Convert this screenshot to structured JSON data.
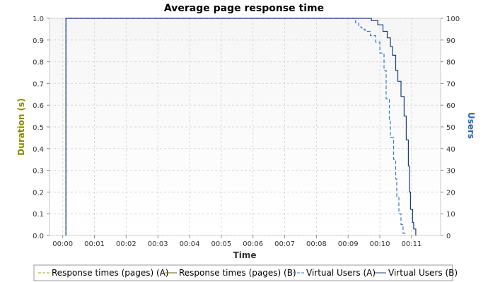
{
  "chart_data": {
    "type": "line",
    "title": "Average page response time",
    "xlabel": "Time",
    "ylabel_left": "Duration (s)",
    "ylabel_right": "Users",
    "x_unit": "seconds",
    "x_range": [
      -25,
      715
    ],
    "x_ticks": [
      {
        "value": 0,
        "label": "00:00"
      },
      {
        "value": 60,
        "label": "00:01"
      },
      {
        "value": 120,
        "label": "00:02"
      },
      {
        "value": 180,
        "label": "00:03"
      },
      {
        "value": 240,
        "label": "00:04"
      },
      {
        "value": 300,
        "label": "00:05"
      },
      {
        "value": 360,
        "label": "00:06"
      },
      {
        "value": 420,
        "label": "00:07"
      },
      {
        "value": 480,
        "label": "00:08"
      },
      {
        "value": 540,
        "label": "00:09"
      },
      {
        "value": 600,
        "label": "00:10"
      },
      {
        "value": 660,
        "label": "00:11"
      }
    ],
    "y_left_range": [
      0,
      1.0
    ],
    "y_left_ticks": [
      "0.0",
      "0.1",
      "0.2",
      "0.3",
      "0.4",
      "0.5",
      "0.6",
      "0.7",
      "0.8",
      "0.9",
      "1.0"
    ],
    "y_right_range": [
      0,
      100
    ],
    "y_right_ticks": [
      "0",
      "10",
      "20",
      "30",
      "40",
      "50",
      "60",
      "70",
      "80",
      "90",
      "100"
    ],
    "grid": true,
    "legend_position": "bottom",
    "series": [
      {
        "name": "Response times (pages) (A)",
        "axis": "left",
        "color": "#a0a020",
        "dash": "dashed",
        "x": [],
        "y": []
      },
      {
        "name": "Response times (pages) (B)",
        "axis": "left",
        "color": "#606000",
        "dash": "solid",
        "x": [],
        "y": []
      },
      {
        "name": "Virtual Users (A)",
        "axis": "right",
        "color": "#3a78c0",
        "dash": "dashed",
        "x": [
          6,
          6,
          550,
          554,
          560,
          566,
          572,
          582,
          592,
          600,
          608,
          612,
          618,
          620,
          626,
          630,
          632,
          636,
          640,
          644,
          648
        ],
        "y": [
          0,
          100,
          100,
          98,
          96,
          95,
          94,
          92,
          89,
          84,
          76,
          63,
          53,
          45,
          35,
          26,
          18,
          10,
          5,
          1,
          0
        ]
      },
      {
        "name": "Virtual Users (B)",
        "axis": "right",
        "color": "#1a3d78",
        "dash": "solid",
        "x": [
          6,
          6,
          578,
          584,
          596,
          606,
          614,
          620,
          624,
          630,
          634,
          640,
          646,
          650,
          654,
          656,
          658,
          662,
          664,
          668
        ],
        "y": [
          0,
          100,
          100,
          99,
          97,
          94,
          91,
          87,
          83,
          76,
          71,
          64,
          55,
          44,
          32,
          20,
          12,
          6,
          3,
          0
        ]
      }
    ]
  }
}
